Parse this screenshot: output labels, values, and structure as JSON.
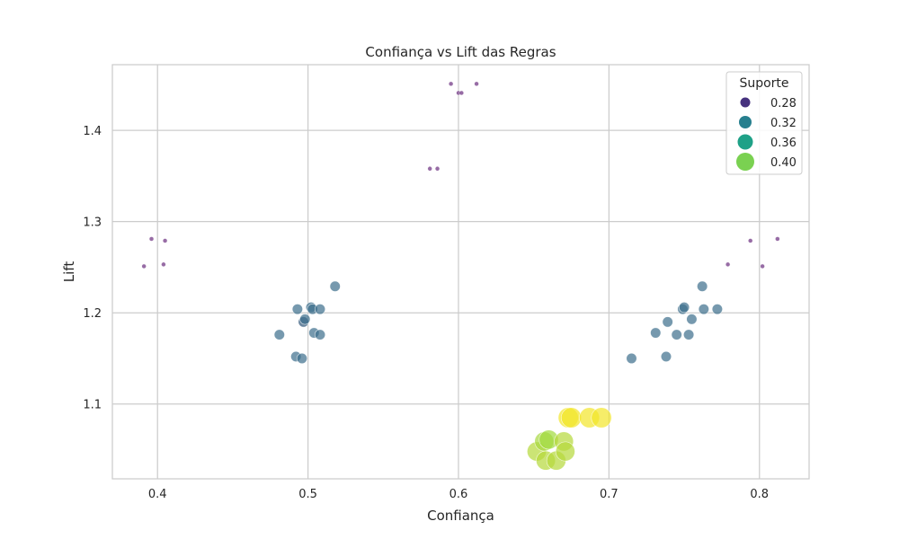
{
  "chart_data": {
    "type": "scatter",
    "title": "Confiança vs Lift das Regras",
    "xlabel": "Confiança",
    "ylabel": "Lift",
    "xlim": [
      0.37,
      0.833
    ],
    "ylim": [
      1.018,
      1.472
    ],
    "xticks": [
      0.4,
      0.5,
      0.6,
      0.7,
      0.8
    ],
    "yticks": [
      1.1,
      1.2,
      1.3,
      1.4
    ],
    "grid": true,
    "legend": {
      "title": "Suporte",
      "placement": "top-right",
      "entries": [
        {
          "label": "0.28",
          "value": 0.28,
          "color": "#46327e"
        },
        {
          "label": "0.32",
          "value": 0.32,
          "color": "#277f8e"
        },
        {
          "label": "0.36",
          "value": 0.36,
          "color": "#1fa187"
        },
        {
          "label": "0.40",
          "value": 0.4,
          "color": "#7ad151"
        }
      ]
    },
    "points": [
      {
        "x": 0.391,
        "y": 1.251,
        "support": 0.264,
        "color": "#6b2e7f"
      },
      {
        "x": 0.396,
        "y": 1.281,
        "support": 0.264,
        "color": "#6b2e7f"
      },
      {
        "x": 0.404,
        "y": 1.253,
        "support": 0.264,
        "color": "#6b2e7f"
      },
      {
        "x": 0.405,
        "y": 1.279,
        "support": 0.264,
        "color": "#6b2e7f"
      },
      {
        "x": 0.581,
        "y": 1.358,
        "support": 0.264,
        "color": "#6b2e7f"
      },
      {
        "x": 0.586,
        "y": 1.358,
        "support": 0.264,
        "color": "#6b2e7f"
      },
      {
        "x": 0.595,
        "y": 1.451,
        "support": 0.264,
        "color": "#6b2e7f"
      },
      {
        "x": 0.6,
        "y": 1.441,
        "support": 0.264,
        "color": "#6b2e7f"
      },
      {
        "x": 0.602,
        "y": 1.441,
        "support": 0.264,
        "color": "#6b2e7f"
      },
      {
        "x": 0.612,
        "y": 1.451,
        "support": 0.264,
        "color": "#6b2e7f"
      },
      {
        "x": 0.779,
        "y": 1.253,
        "support": 0.264,
        "color": "#6b2e7f"
      },
      {
        "x": 0.794,
        "y": 1.279,
        "support": 0.264,
        "color": "#6b2e7f"
      },
      {
        "x": 0.802,
        "y": 1.251,
        "support": 0.264,
        "color": "#6b2e7f"
      },
      {
        "x": 0.812,
        "y": 1.281,
        "support": 0.264,
        "color": "#6b2e7f"
      },
      {
        "x": 0.481,
        "y": 1.176,
        "support": 0.322,
        "color": "#3c6e8c"
      },
      {
        "x": 0.492,
        "y": 1.152,
        "support": 0.322,
        "color": "#3c6e8c"
      },
      {
        "x": 0.493,
        "y": 1.204,
        "support": 0.322,
        "color": "#3c6e8c"
      },
      {
        "x": 0.496,
        "y": 1.15,
        "support": 0.322,
        "color": "#3c6e8c"
      },
      {
        "x": 0.497,
        "y": 1.19,
        "support": 0.322,
        "color": "#2c5478"
      },
      {
        "x": 0.498,
        "y": 1.193,
        "support": 0.322,
        "color": "#3c6e8c"
      },
      {
        "x": 0.502,
        "y": 1.206,
        "support": 0.322,
        "color": "#3c6e8c"
      },
      {
        "x": 0.503,
        "y": 1.204,
        "support": 0.322,
        "color": "#3c6e8c"
      },
      {
        "x": 0.504,
        "y": 1.178,
        "support": 0.322,
        "color": "#3c6e8c"
      },
      {
        "x": 0.508,
        "y": 1.176,
        "support": 0.322,
        "color": "#3c6e8c"
      },
      {
        "x": 0.508,
        "y": 1.204,
        "support": 0.322,
        "color": "#3c6e8c"
      },
      {
        "x": 0.518,
        "y": 1.229,
        "support": 0.322,
        "color": "#3c6e8c"
      },
      {
        "x": 0.715,
        "y": 1.15,
        "support": 0.322,
        "color": "#3c6e8c"
      },
      {
        "x": 0.731,
        "y": 1.178,
        "support": 0.322,
        "color": "#3c6e8c"
      },
      {
        "x": 0.738,
        "y": 1.152,
        "support": 0.322,
        "color": "#3c6e8c"
      },
      {
        "x": 0.739,
        "y": 1.19,
        "support": 0.322,
        "color": "#3c6e8c"
      },
      {
        "x": 0.745,
        "y": 1.176,
        "support": 0.322,
        "color": "#3c6e8c"
      },
      {
        "x": 0.749,
        "y": 1.204,
        "support": 0.322,
        "color": "#3c6e8c"
      },
      {
        "x": 0.75,
        "y": 1.206,
        "support": 0.322,
        "color": "#3c6e8c"
      },
      {
        "x": 0.753,
        "y": 1.176,
        "support": 0.322,
        "color": "#3c6e8c"
      },
      {
        "x": 0.755,
        "y": 1.193,
        "support": 0.322,
        "color": "#3c6e8c"
      },
      {
        "x": 0.762,
        "y": 1.229,
        "support": 0.322,
        "color": "#3c6e8c"
      },
      {
        "x": 0.763,
        "y": 1.204,
        "support": 0.322,
        "color": "#3c6e8c"
      },
      {
        "x": 0.772,
        "y": 1.204,
        "support": 0.322,
        "color": "#3c6e8c"
      },
      {
        "x": 0.652,
        "y": 1.048,
        "support": 0.41,
        "color": "#b5d93a"
      },
      {
        "x": 0.657,
        "y": 1.059,
        "support": 0.41,
        "color": "#a8d940"
      },
      {
        "x": 0.658,
        "y": 1.038,
        "support": 0.41,
        "color": "#b5d93a"
      },
      {
        "x": 0.66,
        "y": 1.061,
        "support": 0.41,
        "color": "#a0da3a"
      },
      {
        "x": 0.665,
        "y": 1.038,
        "support": 0.41,
        "color": "#b5d93a"
      },
      {
        "x": 0.67,
        "y": 1.059,
        "support": 0.41,
        "color": "#b5d93a"
      },
      {
        "x": 0.671,
        "y": 1.048,
        "support": 0.41,
        "color": "#b5d93a"
      },
      {
        "x": 0.673,
        "y": 1.085,
        "support": 0.42,
        "color": "#f2e62a"
      },
      {
        "x": 0.675,
        "y": 1.085,
        "support": 0.42,
        "color": "#f2e62a"
      },
      {
        "x": 0.687,
        "y": 1.085,
        "support": 0.42,
        "color": "#f2e62a"
      },
      {
        "x": 0.695,
        "y": 1.085,
        "support": 0.42,
        "color": "#f2e62a"
      }
    ]
  }
}
